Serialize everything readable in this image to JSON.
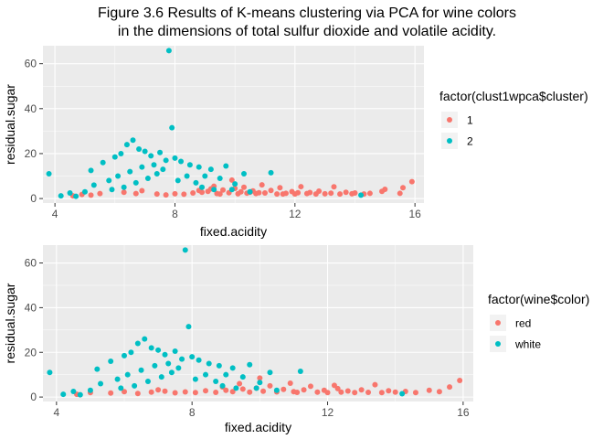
{
  "title_line1": "Figure 3.6 Results of K-means clustering via PCA for wine colors",
  "title_line2": "in the dimensions of total sulfur dioxide and volatile acidity.",
  "colors": {
    "red": "#F8766D",
    "teal": "#00BFC4",
    "panel": "#EBEBEB",
    "grid": "#ffffff"
  },
  "chart_data": [
    {
      "type": "scatter",
      "xlabel": "fixed.acidity",
      "ylabel": "residual.sugar",
      "xlim": [
        3.6,
        16.3
      ],
      "ylim": [
        -2,
        68
      ],
      "xticks": [
        4,
        8,
        12,
        16
      ],
      "yticks": [
        0,
        20,
        40,
        60
      ],
      "grid": true,
      "legend": {
        "title": "factor(clust1wpca$cluster)",
        "position": "right",
        "entries": [
          {
            "label": "1",
            "color": "#F8766D"
          },
          {
            "label": "2",
            "color": "#00BFC4"
          }
        ]
      },
      "series": [
        {
          "name": "1",
          "color": "#F8766D",
          "points": [
            [
              4.6,
              1.2
            ],
            [
              4.9,
              1.8
            ],
            [
              5.2,
              1.5
            ],
            [
              5.5,
              2.2
            ],
            [
              6.3,
              2.8
            ],
            [
              6.9,
              3.5
            ],
            [
              7.4,
              2.0
            ],
            [
              7.7,
              1.6
            ],
            [
              8.0,
              2.1
            ],
            [
              8.3,
              1.9
            ],
            [
              8.6,
              2.5
            ],
            [
              8.9,
              2.8
            ],
            [
              9.1,
              3.2
            ],
            [
              9.3,
              5.5
            ],
            [
              9.4,
              2.2
            ],
            [
              9.6,
              3.8
            ],
            [
              9.8,
              2.6
            ],
            [
              9.9,
              8.2
            ],
            [
              10.0,
              4.5
            ],
            [
              10.1,
              2.1
            ],
            [
              10.2,
              3.0
            ],
            [
              10.3,
              5.0
            ],
            [
              10.4,
              2.4
            ],
            [
              10.6,
              3.4
            ],
            [
              10.7,
              2.2
            ],
            [
              10.9,
              6.1
            ],
            [
              11.0,
              2.5
            ],
            [
              11.2,
              3.6
            ],
            [
              11.4,
              2.0
            ],
            [
              11.5,
              4.8
            ],
            [
              11.7,
              2.3
            ],
            [
              11.9,
              3.1
            ],
            [
              12.0,
              2.0
            ],
            [
              12.2,
              5.3
            ],
            [
              12.4,
              2.2
            ],
            [
              12.5,
              2.7
            ],
            [
              12.7,
              2.0
            ],
            [
              12.8,
              3.3
            ],
            [
              13.0,
              2.1
            ],
            [
              13.2,
              2.4
            ],
            [
              13.3,
              5.2
            ],
            [
              13.5,
              2.0
            ],
            [
              13.7,
              2.8
            ],
            [
              13.9,
              2.1
            ],
            [
              14.0,
              2.5
            ],
            [
              14.3,
              2.0
            ],
            [
              14.5,
              2.3
            ],
            [
              14.9,
              3.2
            ],
            [
              15.0,
              4.1
            ],
            [
              15.5,
              2.3
            ],
            [
              15.6,
              4.8
            ],
            [
              15.9,
              7.5
            ],
            [
              11.6,
              2.0
            ],
            [
              10.5,
              2.8
            ],
            [
              12.1,
              2.6
            ],
            [
              9.2,
              4.3
            ],
            [
              8.8,
              3.6
            ],
            [
              9.5,
              2.0
            ],
            [
              10.8,
              2.6
            ],
            [
              6.7,
              2.2
            ]
          ]
        },
        {
          "name": "2",
          "color": "#00BFC4",
          "points": [
            [
              3.8,
              11.0
            ],
            [
              4.2,
              1.2
            ],
            [
              4.5,
              2.5
            ],
            [
              4.7,
              1.0
            ],
            [
              5.0,
              3.0
            ],
            [
              5.2,
              12.5
            ],
            [
              5.6,
              16.0
            ],
            [
              6.0,
              18.5
            ],
            [
              6.2,
              20.0
            ],
            [
              6.4,
              24.0
            ],
            [
              6.6,
              26.0
            ],
            [
              6.8,
              22.0
            ],
            [
              7.0,
              21.0
            ],
            [
              7.2,
              19.0
            ],
            [
              7.5,
              20.5
            ],
            [
              7.7,
              17.0
            ],
            [
              7.9,
              31.5
            ],
            [
              7.8,
              65.8
            ],
            [
              8.0,
              18.0
            ],
            [
              8.2,
              16.5
            ],
            [
              8.5,
              15.0
            ],
            [
              8.8,
              14.0
            ],
            [
              9.0,
              10.0
            ],
            [
              9.2,
              13.0
            ],
            [
              9.5,
              9.0
            ],
            [
              9.7,
              14.5
            ],
            [
              10.0,
              6.5
            ],
            [
              10.3,
              11.0
            ],
            [
              10.5,
              3.0
            ],
            [
              11.2,
              11.5
            ],
            [
              14.2,
              1.5
            ],
            [
              5.8,
              8.0
            ],
            [
              6.1,
              10.0
            ],
            [
              6.5,
              12.0
            ],
            [
              6.9,
              14.0
            ],
            [
              7.3,
              15.0
            ],
            [
              7.6,
              13.0
            ],
            [
              8.4,
              10.0
            ],
            [
              8.7,
              7.0
            ],
            [
              5.3,
              6.0
            ],
            [
              5.9,
              4.0
            ],
            [
              6.3,
              5.0
            ],
            [
              6.7,
              7.0
            ],
            [
              7.1,
              9.0
            ],
            [
              7.4,
              11.0
            ],
            [
              8.1,
              8.0
            ],
            [
              8.9,
              5.0
            ],
            [
              9.3,
              4.0
            ],
            [
              9.9,
              4.0
            ]
          ]
        }
      ]
    },
    {
      "type": "scatter",
      "xlabel": "fixed.acidity",
      "ylabel": "residual.sugar",
      "xlim": [
        3.6,
        16.3
      ],
      "ylim": [
        -2,
        68
      ],
      "xticks": [
        4,
        8,
        12,
        16
      ],
      "yticks": [
        0,
        20,
        40,
        60
      ],
      "grid": true,
      "legend": {
        "title": "factor(wine$color)",
        "position": "right",
        "entries": [
          {
            "label": "red",
            "color": "#F8766D"
          },
          {
            "label": "white",
            "color": "#00BFC4"
          }
        ]
      },
      "series": [
        {
          "name": "red",
          "color": "#F8766D",
          "points": [
            [
              4.6,
              1.2
            ],
            [
              5.0,
              2.0
            ],
            [
              5.6,
              1.8
            ],
            [
              6.0,
              2.4
            ],
            [
              6.4,
              1.6
            ],
            [
              6.8,
              2.2
            ],
            [
              7.2,
              2.6
            ],
            [
              7.5,
              1.9
            ],
            [
              7.8,
              2.3
            ],
            [
              8.1,
              2.0
            ],
            [
              8.4,
              2.8
            ],
            [
              8.7,
              2.1
            ],
            [
              9.0,
              3.0
            ],
            [
              9.2,
              2.4
            ],
            [
              9.5,
              3.6
            ],
            [
              9.7,
              2.2
            ],
            [
              9.9,
              4.0
            ],
            [
              10.1,
              2.6
            ],
            [
              10.3,
              5.0
            ],
            [
              10.5,
              2.3
            ],
            [
              10.7,
              3.4
            ],
            [
              10.9,
              6.2
            ],
            [
              11.1,
              2.1
            ],
            [
              11.3,
              3.2
            ],
            [
              11.5,
              4.8
            ],
            [
              11.7,
              2.2
            ],
            [
              11.9,
              3.0
            ],
            [
              12.0,
              2.0
            ],
            [
              12.2,
              5.2
            ],
            [
              12.4,
              2.2
            ],
            [
              12.6,
              2.7
            ],
            [
              12.8,
              2.0
            ],
            [
              13.0,
              3.2
            ],
            [
              13.2,
              2.1
            ],
            [
              13.4,
              5.5
            ],
            [
              13.6,
              2.0
            ],
            [
              13.8,
              2.8
            ],
            [
              14.0,
              2.2
            ],
            [
              14.3,
              2.5
            ],
            [
              14.6,
              2.0
            ],
            [
              15.0,
              3.0
            ],
            [
              15.3,
              2.4
            ],
            [
              15.6,
              4.5
            ],
            [
              15.9,
              7.4
            ],
            [
              10.0,
              8.5
            ],
            [
              9.4,
              6.0
            ],
            [
              8.9,
              4.5
            ],
            [
              12.3,
              3.8
            ],
            [
              11.0,
              2.4
            ],
            [
              7.0,
              3.2
            ]
          ]
        },
        {
          "name": "white",
          "color": "#00BFC4",
          "points": [
            [
              3.8,
              11.0
            ],
            [
              4.2,
              1.2
            ],
            [
              4.5,
              2.5
            ],
            [
              4.7,
              1.0
            ],
            [
              5.0,
              3.0
            ],
            [
              5.2,
              12.5
            ],
            [
              5.6,
              16.0
            ],
            [
              6.0,
              18.5
            ],
            [
              6.2,
              20.0
            ],
            [
              6.4,
              24.0
            ],
            [
              6.6,
              26.0
            ],
            [
              6.8,
              22.0
            ],
            [
              7.0,
              21.0
            ],
            [
              7.2,
              19.0
            ],
            [
              7.5,
              20.5
            ],
            [
              7.7,
              17.0
            ],
            [
              7.9,
              31.5
            ],
            [
              7.8,
              65.8
            ],
            [
              8.0,
              18.0
            ],
            [
              8.2,
              16.5
            ],
            [
              8.5,
              15.0
            ],
            [
              8.8,
              14.0
            ],
            [
              9.0,
              10.0
            ],
            [
              9.2,
              13.0
            ],
            [
              9.5,
              9.0
            ],
            [
              9.7,
              14.5
            ],
            [
              10.0,
              6.5
            ],
            [
              10.3,
              11.0
            ],
            [
              10.5,
              3.0
            ],
            [
              11.2,
              11.5
            ],
            [
              14.2,
              1.5
            ],
            [
              5.8,
              8.0
            ],
            [
              6.1,
              10.0
            ],
            [
              6.5,
              12.0
            ],
            [
              6.9,
              14.0
            ],
            [
              7.3,
              15.0
            ],
            [
              7.6,
              13.0
            ],
            [
              8.4,
              10.0
            ],
            [
              8.7,
              7.0
            ],
            [
              5.3,
              6.0
            ],
            [
              5.9,
              4.0
            ],
            [
              6.3,
              5.0
            ],
            [
              6.7,
              7.0
            ],
            [
              7.1,
              9.0
            ],
            [
              7.4,
              11.0
            ],
            [
              8.1,
              8.0
            ],
            [
              8.9,
              5.0
            ],
            [
              9.3,
              4.0
            ],
            [
              9.9,
              4.0
            ]
          ]
        }
      ]
    }
  ]
}
